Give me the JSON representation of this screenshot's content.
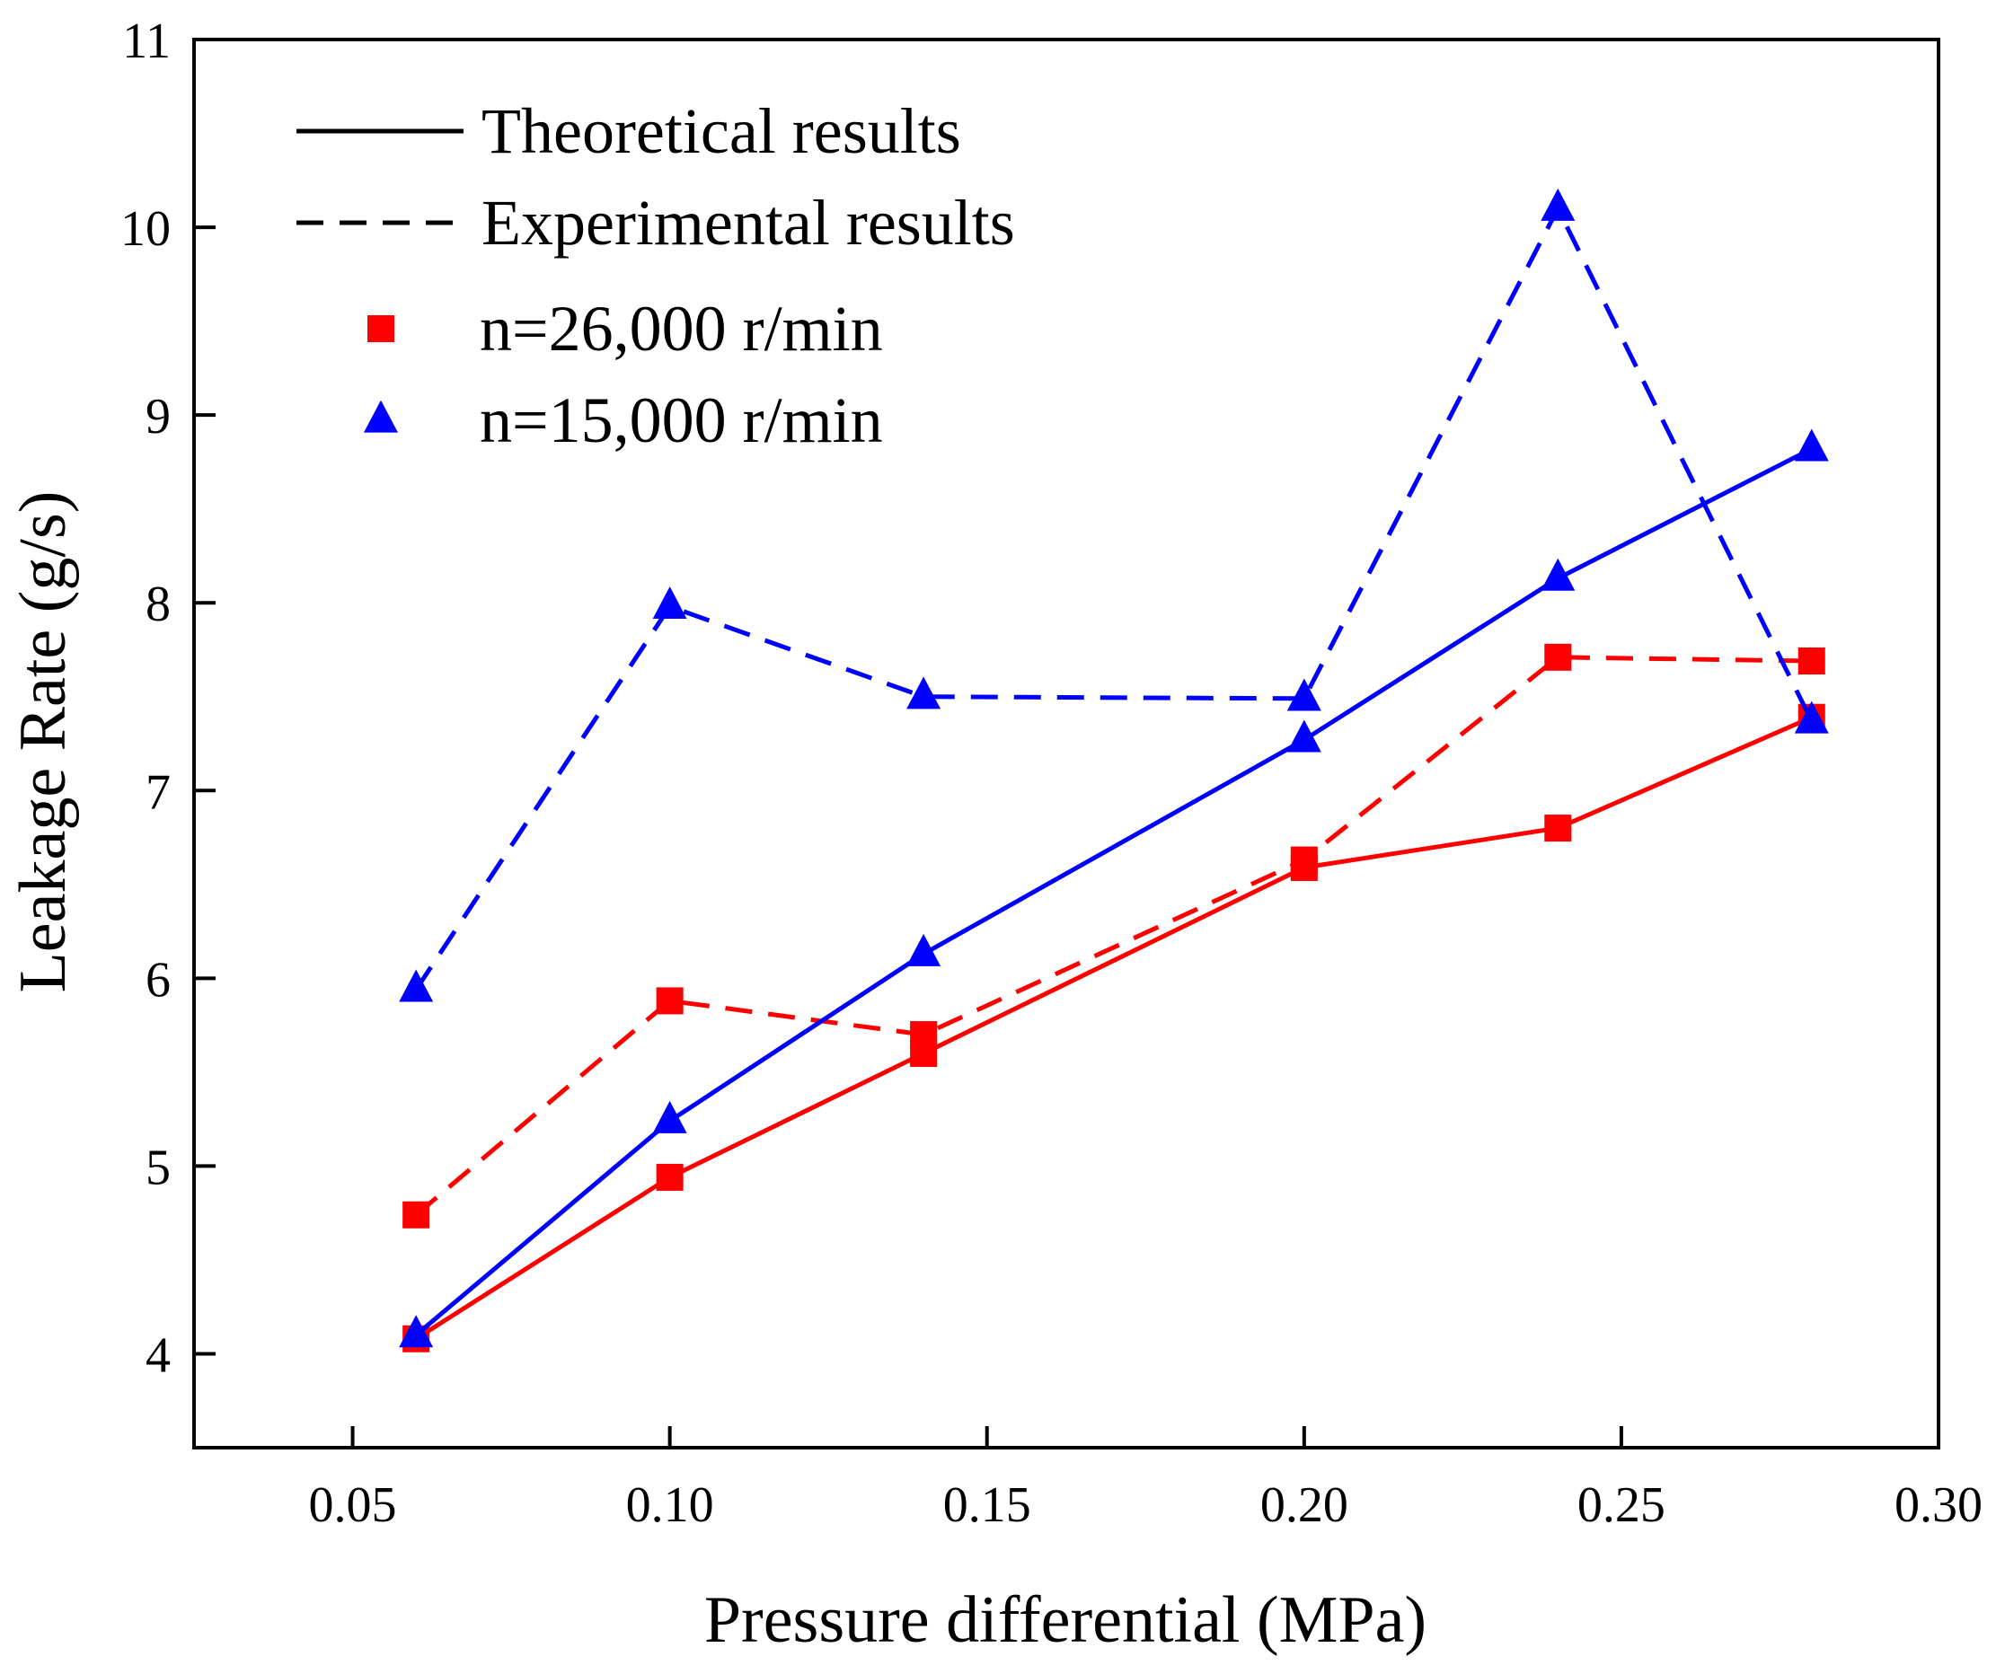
{
  "chart_data": {
    "type": "line",
    "title": "",
    "xlabel": "Pressure differential (MPa)",
    "ylabel": "Leakage Rate (g/s)",
    "xlim": [
      0.025,
      0.3
    ],
    "ylim": [
      3.5,
      11
    ],
    "xticks": [
      0.05,
      0.1,
      0.15,
      0.2,
      0.25,
      0.3
    ],
    "xtick_labels": [
      "0.05",
      "0.10",
      "0.15",
      "0.20",
      "0.25",
      "0.30"
    ],
    "yticks": [
      4,
      5,
      6,
      7,
      8,
      9,
      10,
      11
    ],
    "ytick_labels": [
      "4",
      "5",
      "6",
      "7",
      "8",
      "9",
      "10",
      "11"
    ],
    "x": [
      0.06,
      0.1,
      0.14,
      0.2,
      0.24,
      0.28
    ],
    "series": [
      {
        "name": "n=26,000 r/min (theoretical)",
        "style": "solid",
        "marker": "square",
        "color": "#ff0000",
        "values": [
          4.08,
          4.94,
          5.6,
          6.59,
          6.8,
          7.39
        ]
      },
      {
        "name": "n=26,000 r/min (experimental)",
        "style": "dashed",
        "marker": "square",
        "color": "#ff0000",
        "values": [
          4.74,
          5.88,
          5.7,
          6.63,
          7.71,
          7.69
        ]
      },
      {
        "name": "n=15,000 r/min (theoretical)",
        "style": "solid",
        "marker": "triangle",
        "color": "#0000ff",
        "values": [
          4.1,
          5.24,
          6.13,
          7.27,
          8.13,
          8.82
        ]
      },
      {
        "name": "n=15,000 r/min (experimental)",
        "style": "dashed",
        "marker": "triangle",
        "color": "#0000ff",
        "values": [
          5.94,
          7.98,
          7.5,
          7.49,
          10.1,
          7.37
        ]
      }
    ],
    "legend": {
      "position": "top-left",
      "entries": [
        {
          "label": "Theoretical results",
          "kind": "line",
          "style": "solid",
          "color": "#000000"
        },
        {
          "label": "Experimental results",
          "kind": "line",
          "style": "dashed",
          "color": "#000000"
        },
        {
          "label": "n=26,000 r/min",
          "kind": "marker",
          "marker": "square",
          "color": "#ff0000"
        },
        {
          "label": "n=15,000 r/min",
          "kind": "marker",
          "marker": "triangle",
          "color": "#0000ff"
        }
      ]
    },
    "grid": false
  }
}
